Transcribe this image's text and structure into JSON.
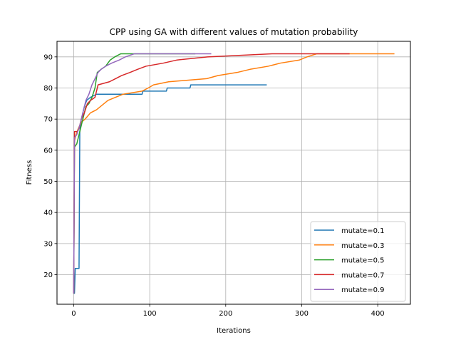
{
  "chart_data": {
    "type": "line",
    "title": "CPP using GA with  different values of mutation probability",
    "xlabel": "Iterations",
    "ylabel": "Fitness",
    "xlim": [
      -22,
      443
    ],
    "ylim": [
      10.5,
      95
    ],
    "xticks": [
      0,
      100,
      200,
      300,
      400
    ],
    "yticks": [
      20,
      30,
      40,
      50,
      60,
      70,
      80,
      90
    ],
    "grid": true,
    "legend_position": "lower right",
    "series": [
      {
        "name": "mutate=0.1",
        "color": "#1f77b4",
        "points": [
          [
            0,
            14
          ],
          [
            1,
            14
          ],
          [
            2,
            22
          ],
          [
            7,
            22
          ],
          [
            8,
            66
          ],
          [
            10,
            70
          ],
          [
            12,
            72
          ],
          [
            14,
            74
          ],
          [
            17,
            76
          ],
          [
            22,
            77
          ],
          [
            30,
            78
          ],
          [
            90,
            78
          ],
          [
            91,
            79
          ],
          [
            122,
            79
          ],
          [
            123,
            80
          ],
          [
            153,
            80
          ],
          [
            154,
            81
          ],
          [
            254,
            81
          ]
        ]
      },
      {
        "name": "mutate=0.3",
        "color": "#ff7f0e",
        "points": [
          [
            0,
            14
          ],
          [
            1,
            63
          ],
          [
            3,
            65
          ],
          [
            6,
            67
          ],
          [
            10,
            69
          ],
          [
            15,
            70
          ],
          [
            22,
            72
          ],
          [
            30,
            73
          ],
          [
            35,
            74
          ],
          [
            40,
            75
          ],
          [
            45,
            76
          ],
          [
            55,
            77
          ],
          [
            65,
            78
          ],
          [
            90,
            79
          ],
          [
            98,
            80
          ],
          [
            105,
            81
          ],
          [
            125,
            82
          ],
          [
            175,
            83
          ],
          [
            190,
            84
          ],
          [
            215,
            85
          ],
          [
            232,
            86
          ],
          [
            256,
            87
          ],
          [
            272,
            88
          ],
          [
            297,
            89
          ],
          [
            307,
            90
          ],
          [
            320,
            91
          ],
          [
            422,
            91
          ]
        ]
      },
      {
        "name": "mutate=0.5",
        "color": "#2ca02c",
        "points": [
          [
            0,
            14
          ],
          [
            1,
            61
          ],
          [
            4,
            62
          ],
          [
            8,
            66
          ],
          [
            12,
            70
          ],
          [
            16,
            74
          ],
          [
            20,
            75
          ],
          [
            24,
            77
          ],
          [
            28,
            80
          ],
          [
            31,
            85
          ],
          [
            36,
            86
          ],
          [
            42,
            87
          ],
          [
            48,
            89
          ],
          [
            54,
            90
          ],
          [
            62,
            91
          ],
          [
            160,
            91
          ]
        ]
      },
      {
        "name": "mutate=0.7",
        "color": "#d62728",
        "points": [
          [
            0,
            14
          ],
          [
            1,
            66
          ],
          [
            5,
            66
          ],
          [
            7,
            67
          ],
          [
            10,
            70
          ],
          [
            14,
            72
          ],
          [
            18,
            75
          ],
          [
            22,
            76
          ],
          [
            28,
            77
          ],
          [
            32,
            81
          ],
          [
            47,
            82
          ],
          [
            55,
            83
          ],
          [
            63,
            84
          ],
          [
            74,
            85
          ],
          [
            84,
            86
          ],
          [
            95,
            87
          ],
          [
            118,
            88
          ],
          [
            136,
            89
          ],
          [
            176,
            90
          ],
          [
            262,
            91
          ],
          [
            363,
            91
          ]
        ]
      },
      {
        "name": "mutate=0.9",
        "color": "#9467bd",
        "points": [
          [
            0,
            14
          ],
          [
            1,
            64
          ],
          [
            4,
            65
          ],
          [
            8,
            68
          ],
          [
            12,
            72
          ],
          [
            16,
            76
          ],
          [
            20,
            78
          ],
          [
            24,
            81
          ],
          [
            28,
            83
          ],
          [
            32,
            85
          ],
          [
            36,
            86
          ],
          [
            42,
            87
          ],
          [
            50,
            88
          ],
          [
            60,
            89
          ],
          [
            68,
            90
          ],
          [
            80,
            91
          ],
          [
            181,
            91
          ]
        ]
      }
    ]
  }
}
